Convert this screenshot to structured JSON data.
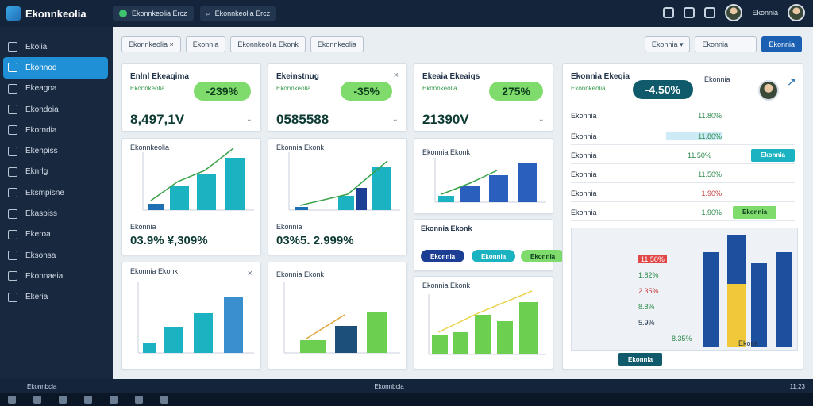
{
  "app": {
    "title": "Ekonnkeolia"
  },
  "topbar": {
    "tab1": "Ekonnkeolia Ercz",
    "tab2": "Ekonnkeolia Ercz"
  },
  "sidebar": {
    "items": [
      {
        "label": "Ekolia"
      },
      {
        "label": "Ekonnod"
      },
      {
        "label": "Ekeagoa"
      },
      {
        "label": "Ekondoia"
      },
      {
        "label": "Ekorndia"
      },
      {
        "label": "Ekenpiss"
      },
      {
        "label": "Eknrlg"
      },
      {
        "label": "Eksmpisne"
      },
      {
        "label": "Ekaspiss"
      },
      {
        "label": "Ekeroa"
      },
      {
        "label": "Eksonsa"
      },
      {
        "label": "Ekonnaeia"
      },
      {
        "label": "Ekeria"
      }
    ],
    "footer": "Ekonnbcla"
  },
  "filters": {
    "chips": [
      "Ekonnkeolia ×",
      "Ekonnia",
      "Ekonnkeolia Ekonk",
      "Ekonnkeolia"
    ],
    "right": [
      "Ekonnia ▾",
      "Ekonnia",
      "Ekonnia"
    ]
  },
  "cards": {
    "k1": {
      "title": "Enlnl Ekeaqima",
      "sub": "Ekonnkeolia",
      "value": "8,497,1V",
      "pct": "-239%"
    },
    "k2": {
      "title": "Ekeinstnug",
      "sub": "Ekonnkeolia",
      "value": "0585588",
      "pct": "-35%"
    },
    "k3": {
      "title": "Ekeaia Ekeaiqs",
      "sub": "Ekonnkeolia",
      "value": "21390V",
      "pct": "275%"
    },
    "c1": {
      "title": "Ekonnkeolia",
      "subtitle": "Ekonnia",
      "value": "03.9% ¥,309%"
    },
    "c2": {
      "title": "Ekonnia Ekonk",
      "subtitle": "Ekonnia",
      "value": "03%5. 2.999%"
    },
    "c3": {
      "title": "Ekonnia Ekonk"
    },
    "c4": {
      "title": "Ekonnia Ekonk",
      "tag1": "Ekonnia",
      "tag2": "Ekonnia",
      "tag3": "Ekonnia"
    },
    "b1": {
      "title": "Ekonnia Ekonk"
    },
    "b2": {
      "title": "Ekonnia Ekonk"
    },
    "b3": {
      "title": "Ekonnia Ekonk"
    }
  },
  "panel": {
    "title": "Ekonnia Ekeqia",
    "sub": "Ekonnkeolia",
    "pct": "-4.50%",
    "name": "Ekonnia",
    "rows": [
      {
        "name": "Ekonnia",
        "val": "11.80%"
      },
      {
        "name": "Ekonnia",
        "val": "11.80%"
      },
      {
        "name": "Ekonnia",
        "val": "11.50%"
      },
      {
        "name": "Ekonnia",
        "val": "11.50%"
      },
      {
        "name": "Ekonnia",
        "val": "1.90%"
      },
      {
        "name": "Ekonnia",
        "val": "1.90%"
      }
    ],
    "table_vals": [
      "11.50%",
      "1.82%",
      "2.35%",
      "8.8%",
      "5.9%",
      "8.35%"
    ],
    "footer_btn": "Ekonnia",
    "axis_label": "Ekonk"
  },
  "taskbar": {
    "status": "Ekonnbcla",
    "time": "11:23"
  },
  "colors": {
    "accent": "#1f8fd6",
    "green": "#7fdb6b",
    "teal": "#1bb3c1",
    "navy": "#1c3f95"
  }
}
